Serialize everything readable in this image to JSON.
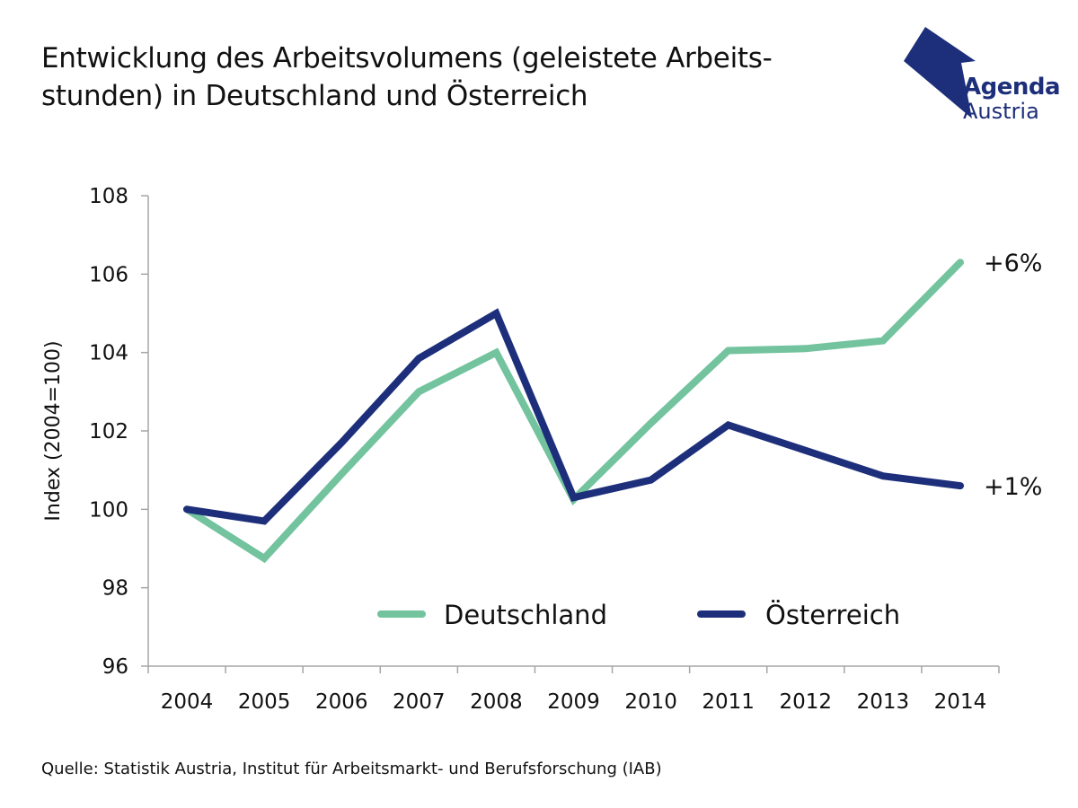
{
  "title": "Entwicklung des Arbeitsvolumens (geleistete Arbeits-stunden) in Deutschland und Österreich",
  "title_lines": [
    "Entwicklung des Arbeitsvolumens (geleistete Arbeits-",
    "stunden) in Deutschland und Österreich"
  ],
  "logo": {
    "line1": "Agenda",
    "line2": "Austria",
    "color": "#1d2f7a"
  },
  "source": "Quelle: Statistik Austria, Institut für Arbeitsmarkt- und Berufsforschung (IAB)",
  "chart_data": {
    "type": "line",
    "title": "Entwicklung des Arbeitsvolumens (geleistete Arbeitsstunden) in Deutschland und Österreich",
    "xlabel": "",
    "ylabel": "Index (2004=100)",
    "x": [
      "2004",
      "2005",
      "2006",
      "2007",
      "2008",
      "2009",
      "2010",
      "2011",
      "2012",
      "2013",
      "2014"
    ],
    "ylim": [
      96,
      108
    ],
    "yticks": [
      96,
      98,
      100,
      102,
      104,
      106,
      108
    ],
    "grid": false,
    "legend_position": "bottom-center-inside",
    "series": [
      {
        "name": "Deutschland",
        "color": "#72c39e",
        "values": [
          100,
          98.75,
          100.9,
          103.0,
          104.0,
          100.25,
          102.2,
          104.05,
          104.1,
          104.3,
          106.3
        ],
        "end_label": "+6%"
      },
      {
        "name": "Österreich",
        "color": "#1d2f7a",
        "values": [
          100,
          99.7,
          101.7,
          103.85,
          105.0,
          100.3,
          100.75,
          102.15,
          101.5,
          100.85,
          100.6
        ],
        "end_label": "+1%"
      }
    ]
  }
}
